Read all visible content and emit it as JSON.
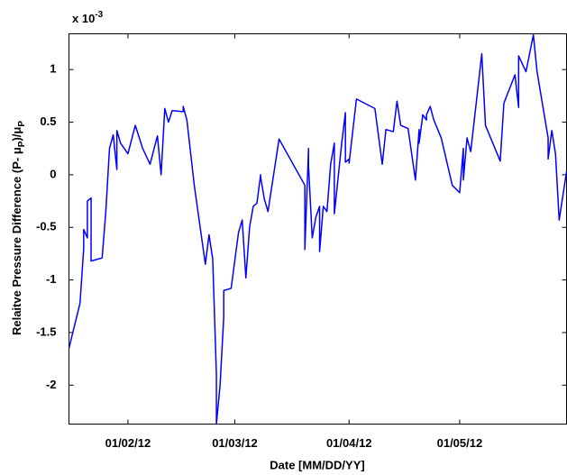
{
  "chart_data": {
    "type": "line",
    "xlabel": "Date [MM/DD/YY]",
    "ylabel_parts": [
      "Relaitve Pressure Difference (P- μ",
      "P",
      ")/μ",
      "P"
    ],
    "y_multiplier": {
      "base": "x 10",
      "exponent": "-3"
    },
    "color": "#0000ff",
    "xlim": [
      "2012-01-16",
      "2012-05-30"
    ],
    "xticks": [
      {
        "value": "2012-02-01",
        "label": "01/02/12"
      },
      {
        "value": "2012-03-01",
        "label": "01/03/12"
      },
      {
        "value": "2012-04-01",
        "label": "01/04/12"
      },
      {
        "value": "2012-05-01",
        "label": "01/05/12"
      }
    ],
    "ylim": [
      -2.37,
      1.34
    ],
    "yticks": [
      -2,
      -1.5,
      -1,
      -0.5,
      0,
      0.5,
      1
    ],
    "x": [
      "2012-01-16",
      "2012-01-19",
      "2012-01-20",
      "2012-01-20",
      "2012-01-21",
      "2012-01-21",
      "2012-01-22",
      "2012-01-22",
      "2012-01-25",
      "2012-01-26",
      "2012-01-27",
      "2012-01-28",
      "2012-01-29",
      "2012-01-29",
      "2012-01-30",
      "2012-02-01",
      "2012-02-03",
      "2012-02-05",
      "2012-02-07",
      "2012-02-09",
      "2012-02-10",
      "2012-02-11",
      "2012-02-12",
      "2012-02-13",
      "2012-02-16",
      "2012-02-16",
      "2012-02-17",
      "2012-02-19",
      "2012-02-21",
      "2012-02-22",
      "2012-02-23",
      "2012-02-24",
      "2012-02-25",
      "2012-02-25",
      "2012-02-26",
      "2012-02-27",
      "2012-02-27",
      "2012-02-29",
      "2012-03-02",
      "2012-03-03",
      "2012-03-04",
      "2012-03-05",
      "2012-03-06",
      "2012-03-07",
      "2012-03-08",
      "2012-03-08",
      "2012-03-09",
      "2012-03-10",
      "2012-03-13",
      "2012-03-20",
      "2012-03-20",
      "2012-03-21",
      "2012-03-21",
      "2012-03-22",
      "2012-03-23",
      "2012-03-24",
      "2012-03-24",
      "2012-03-25",
      "2012-03-26",
      "2012-03-27",
      "2012-03-28",
      "2012-03-28",
      "2012-03-30",
      "2012-03-31",
      "2012-03-31",
      "2012-04-01",
      "2012-04-01",
      "2012-04-03",
      "2012-04-08",
      "2012-04-10",
      "2012-04-11",
      "2012-04-13",
      "2012-04-14",
      "2012-04-15",
      "2012-04-17",
      "2012-04-19",
      "2012-04-20",
      "2012-04-20",
      "2012-04-21",
      "2012-04-22",
      "2012-04-22",
      "2012-04-23",
      "2012-04-24",
      "2012-04-26",
      "2012-04-29",
      "2012-05-01",
      "2012-05-02",
      "2012-05-02",
      "2012-05-03",
      "2012-05-04",
      "2012-05-07",
      "2012-05-08",
      "2012-05-12",
      "2012-05-13",
      "2012-05-16",
      "2012-05-17",
      "2012-05-17",
      "2012-05-19",
      "2012-05-21",
      "2012-05-22",
      "2012-05-25",
      "2012-05-25",
      "2012-05-26",
      "2012-05-27",
      "2012-05-28",
      "2012-05-30"
    ],
    "values": [
      -1.65,
      -1.22,
      -0.7,
      -0.52,
      -0.6,
      -0.25,
      -0.22,
      -0.82,
      -0.79,
      -0.35,
      0.25,
      0.38,
      0.05,
      0.42,
      0.3,
      0.2,
      0.47,
      0.25,
      0.1,
      0.37,
      0.0,
      0.63,
      0.5,
      0.61,
      0.6,
      0.65,
      0.52,
      -0.1,
      -0.6,
      -0.85,
      -0.57,
      -0.8,
      -1.9,
      -2.37,
      -2.0,
      -1.35,
      -1.1,
      -1.08,
      -0.55,
      -0.43,
      -0.98,
      -0.5,
      -0.3,
      -0.27,
      0.0,
      -0.02,
      -0.23,
      -0.35,
      0.34,
      -0.1,
      -0.71,
      0.25,
      0.08,
      -0.6,
      -0.4,
      -0.3,
      -0.73,
      -0.3,
      -0.35,
      0.1,
      0.3,
      -0.37,
      0.3,
      0.59,
      0.12,
      0.15,
      0.11,
      0.72,
      0.63,
      0.1,
      0.43,
      0.41,
      0.7,
      0.47,
      0.44,
      -0.05,
      0.43,
      0.3,
      0.57,
      0.52,
      0.57,
      0.65,
      0.52,
      0.35,
      -0.1,
      -0.17,
      0.25,
      -0.05,
      0.35,
      0.22,
      1.15,
      0.47,
      0.13,
      0.68,
      0.95,
      0.64,
      1.13,
      0.98,
      1.33,
      0.98,
      0.35,
      0.15,
      0.42,
      0.2,
      -0.43,
      0.03
    ]
  }
}
